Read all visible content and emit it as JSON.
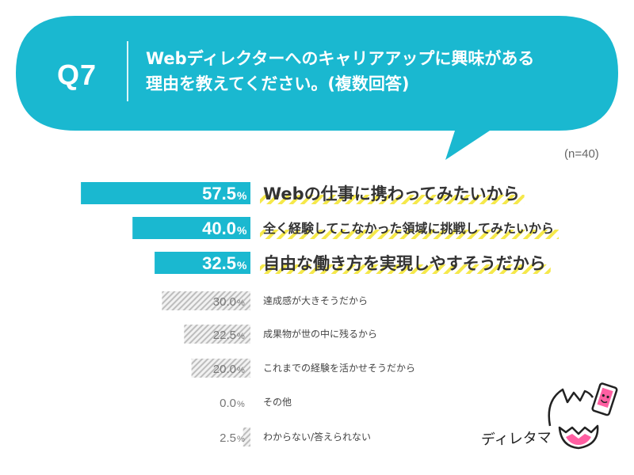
{
  "question": {
    "number": "Q7",
    "lines": [
      "Webディレクターへのキャリアアップに興味がある",
      "理由を教えてください。(複数回答)"
    ]
  },
  "sample_size": "(n=40)",
  "mascot": {
    "name": "ディレタマ",
    "icon": "egg-mascot-icon"
  },
  "colors": {
    "accent": "#1ab8d0",
    "highlight": "#f5e84a",
    "bar_muted": "#cccccc",
    "text_muted": "#777777"
  },
  "chart_data": {
    "type": "bar",
    "orientation": "horizontal",
    "unit": "%",
    "xlim": [
      0,
      100
    ],
    "categories": [
      "Webの仕事に携わってみたいから",
      "全く経験してこなかった領域に挑戦してみたいから",
      "自由な働き方を実現しやすそうだから",
      "達成感が大きそうだから",
      "成果物が世の中に残るから",
      "これまでの経験を活かせそうだから",
      "その他",
      "わからない/答えられない"
    ],
    "values": [
      57.5,
      40.0,
      32.5,
      30.0,
      22.5,
      20.0,
      0.0,
      2.5
    ],
    "value_labels": [
      "57.5",
      "40.0",
      "32.5",
      "30.0",
      "22.5",
      "20.0",
      "0.0",
      "2.5"
    ],
    "highlighted_top": 3
  }
}
